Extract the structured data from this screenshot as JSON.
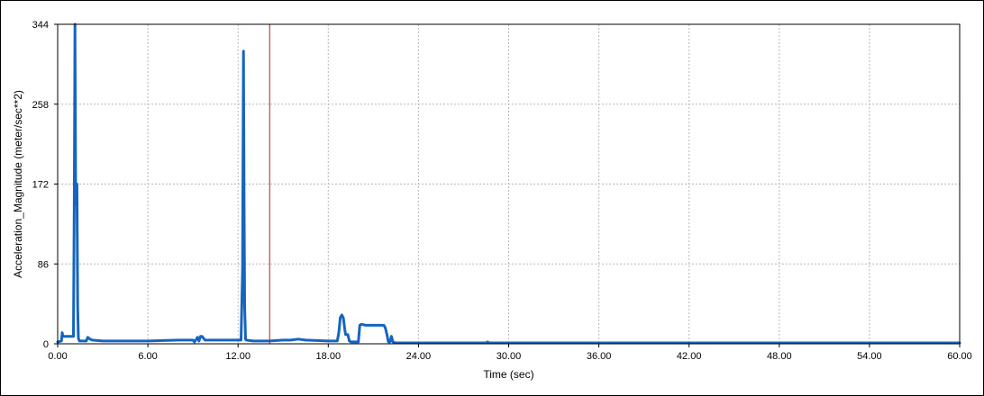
{
  "chart_data": {
    "type": "line",
    "title": "",
    "xlabel": "Time (sec)",
    "ylabel": "Acceleration_Magnitude (meter/sec**2)",
    "xlim": [
      0,
      60
    ],
    "ylim": [
      0,
      344
    ],
    "x_ticks": [
      "0.00",
      "6.00",
      "12.00",
      "18.00",
      "24.00",
      "30.00",
      "36.00",
      "42.00",
      "48.00",
      "54.00",
      "60.00"
    ],
    "y_ticks": [
      "0",
      "86",
      "172",
      "258",
      "344"
    ],
    "grid": true,
    "legend": "none",
    "marker_line": {
      "x": 14.1,
      "color": "#b22222"
    },
    "series": [
      {
        "color": "#1565c0",
        "x": [
          0.0,
          0.25,
          0.3,
          0.35,
          0.6,
          0.9,
          1.05,
          1.1,
          1.15,
          1.2,
          1.22,
          1.28,
          1.33,
          1.38,
          1.45,
          1.9,
          2.0,
          2.15,
          2.3,
          3.0,
          6.0,
          8.0,
          9.0,
          9.1,
          9.3,
          9.4,
          9.5,
          9.6,
          9.8,
          10.0,
          12.2,
          12.3,
          12.32,
          12.36,
          12.4,
          12.44,
          12.5,
          12.55,
          13.0,
          14.1,
          15.0,
          15.5,
          16.0,
          16.5,
          18.0,
          18.6,
          18.7,
          18.8,
          18.9,
          19.0,
          19.1,
          19.15,
          19.3,
          19.4,
          19.5,
          19.8,
          20.0,
          20.1,
          20.2,
          20.5,
          21.0,
          21.5,
          21.7,
          21.8,
          21.9,
          22.0,
          22.1,
          22.2,
          22.3,
          22.5,
          24.0,
          27.0,
          28.5,
          28.6,
          28.7,
          30.0,
          40.0,
          50.0,
          60.0
        ],
        "y": [
          2,
          3,
          12,
          8,
          8,
          8,
          8,
          150,
          344,
          150,
          172,
          172,
          40,
          6,
          3,
          3,
          7,
          5,
          4,
          3,
          3,
          4,
          4,
          2,
          7,
          3,
          8,
          8,
          4,
          4,
          4,
          80,
          160,
          315,
          150,
          40,
          5,
          4,
          3,
          3,
          4,
          4,
          5,
          4,
          3,
          3,
          12,
          28,
          31,
          28,
          15,
          10,
          10,
          3,
          2,
          2,
          2,
          20,
          21,
          20,
          20,
          20,
          20,
          17,
          10,
          2,
          2,
          8,
          2,
          1,
          1,
          1,
          1,
          2,
          1,
          1,
          1,
          1,
          1
        ]
      }
    ]
  }
}
